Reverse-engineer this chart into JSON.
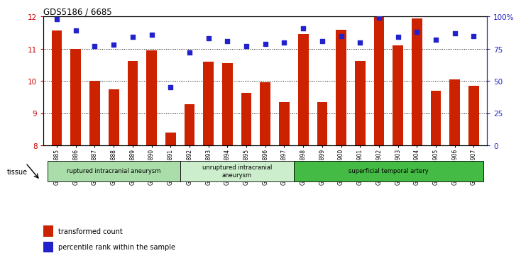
{
  "title": "GDS5186 / 6685",
  "samples": [
    "GSM1306885",
    "GSM1306886",
    "GSM1306887",
    "GSM1306888",
    "GSM1306889",
    "GSM1306890",
    "GSM1306891",
    "GSM1306892",
    "GSM1306893",
    "GSM1306894",
    "GSM1306895",
    "GSM1306896",
    "GSM1306897",
    "GSM1306898",
    "GSM1306899",
    "GSM1306900",
    "GSM1306901",
    "GSM1306902",
    "GSM1306903",
    "GSM1306904",
    "GSM1306905",
    "GSM1306906",
    "GSM1306907"
  ],
  "bar_values": [
    11.57,
    11.0,
    10.0,
    9.75,
    10.62,
    10.95,
    8.4,
    9.28,
    10.6,
    10.55,
    9.62,
    9.95,
    9.35,
    11.45,
    9.35,
    11.58,
    10.62,
    12.0,
    11.1,
    11.95,
    9.7,
    10.05,
    9.85
  ],
  "dot_values": [
    98,
    89,
    77,
    78,
    84,
    86,
    45,
    72,
    83,
    81,
    77,
    79,
    80,
    91,
    81,
    85,
    80,
    99,
    84,
    88,
    82,
    87,
    85
  ],
  "bar_bottom": 8.0,
  "ylim_left": [
    8,
    12
  ],
  "ylim_right": [
    0,
    100
  ],
  "yticks_left": [
    8,
    9,
    10,
    11,
    12
  ],
  "yticks_right": [
    0,
    25,
    50,
    75,
    100
  ],
  "ytick_labels_right": [
    "0",
    "25",
    "50",
    "75",
    "100%"
  ],
  "bar_color": "#cc2200",
  "dot_color": "#2222cc",
  "grid_color": "#000000",
  "bg_color": "#ffffff",
  "groups": [
    {
      "label": "ruptured intracranial aneurysm",
      "start": 0,
      "end": 7,
      "color": "#aaddaa"
    },
    {
      "label": "unruptured intracranial\naneurysm",
      "start": 7,
      "end": 13,
      "color": "#cceecc"
    },
    {
      "label": "superficial temporal artery",
      "start": 13,
      "end": 23,
      "color": "#44bb44"
    }
  ],
  "legend_items": [
    {
      "label": "transformed count",
      "color": "#cc2200"
    },
    {
      "label": "percentile rank within the sample",
      "color": "#2222cc"
    }
  ],
  "tissue_label": "tissue",
  "left_tick_color": "#cc0000",
  "right_tick_color": "#2222cc"
}
